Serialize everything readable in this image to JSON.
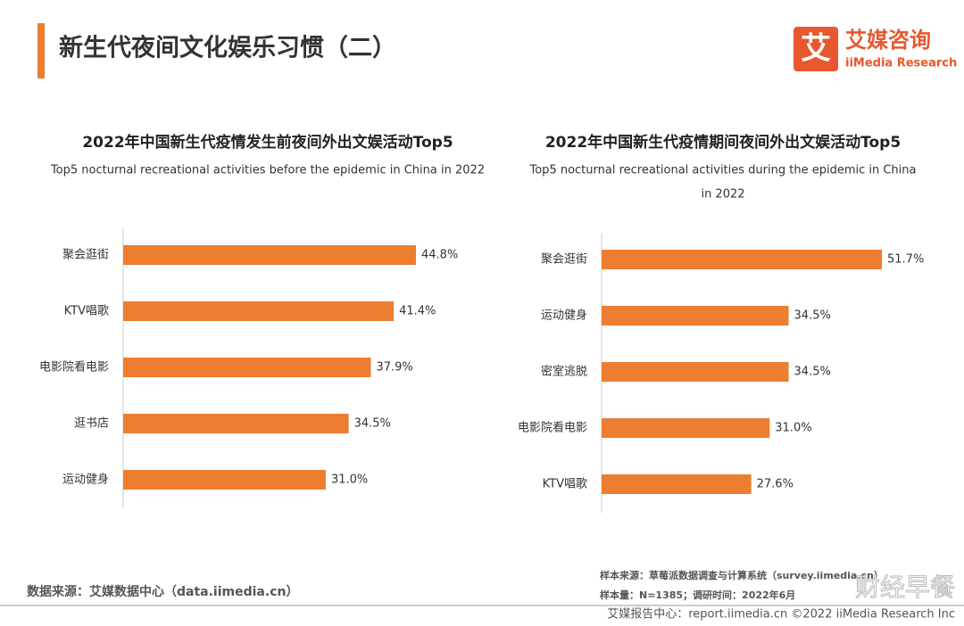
{
  "header": {
    "title": "新生代夜间文化娱乐习惯（二）",
    "logo_mark": "艾",
    "logo_cn": "艾媒咨询",
    "logo_en": "iiMedia Research"
  },
  "chart_data": [
    {
      "type": "bar",
      "orientation": "horizontal",
      "title": "2022年中国新生代疫情发生前夜间外出文娱活动Top5",
      "subtitle": "Top5 nocturnal recreational activities before the epidemic in China in 2022",
      "categories": [
        "聚会逛街",
        "KTV唱歌",
        "电影院看电影",
        "逛书店",
        "运动健身"
      ],
      "values": [
        44.8,
        41.4,
        37.9,
        34.5,
        31.0
      ],
      "value_labels": [
        "44.8%",
        "41.4%",
        "37.9%",
        "34.5%",
        "31.0%"
      ],
      "color": "#ed7d31"
    },
    {
      "type": "bar",
      "orientation": "horizontal",
      "title": "2022年中国新生代疫情期间夜间外出文娱活动Top5",
      "subtitle": [
        "Top5 nocturnal recreational activities during the epidemic in China",
        "in 2022"
      ],
      "categories": [
        "聚会逛街",
        "运动健身",
        "密室逃脱",
        "电影院看电影",
        "KTV唱歌"
      ],
      "values": [
        51.7,
        34.5,
        34.5,
        31.0,
        27.6
      ],
      "value_labels": [
        "51.7%",
        "34.5%",
        "34.5%",
        "31.0%",
        "27.6%"
      ],
      "color": "#ed7d31"
    }
  ],
  "footer": {
    "data_source": "数据来源：艾媒数据中心（data.iimedia.cn）",
    "sample_source": "样本来源：草莓派数据调查与计算系统（survey.iimedia.cn）",
    "sample_size": "样本量：N=1385；调研时间：2022年6月",
    "report_center": "艾媒报告中心：report.iimedia.cn  ©2022  iiMedia Research  Inc",
    "watermark": "财经早餐"
  }
}
